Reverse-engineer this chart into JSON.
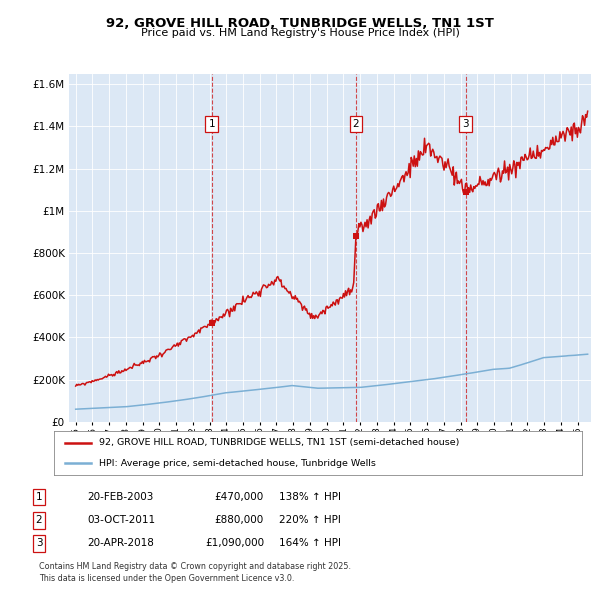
{
  "title": "92, GROVE HILL ROAD, TUNBRIDGE WELLS, TN1 1ST",
  "subtitle": "Price paid vs. HM Land Registry's House Price Index (HPI)",
  "legend_line1": "92, GROVE HILL ROAD, TUNBRIDGE WELLS, TN1 1ST (semi-detached house)",
  "legend_line2": "HPI: Average price, semi-detached house, Tunbridge Wells",
  "footnote": "Contains HM Land Registry data © Crown copyright and database right 2025.\nThis data is licensed under the Open Government Licence v3.0.",
  "transactions": [
    {
      "label": "1",
      "date": "20-FEB-2003",
      "price": 470000,
      "pct": "138%",
      "x": 2003.13
    },
    {
      "label": "2",
      "date": "03-OCT-2011",
      "price": 880000,
      "pct": "220%",
      "x": 2011.75
    },
    {
      "label": "3",
      "date": "20-APR-2018",
      "price": 1090000,
      "pct": "164%",
      "x": 2018.3
    }
  ],
  "hpi_color": "#7bafd4",
  "price_color": "#cc1111",
  "dashed_color": "#cc1111",
  "plot_bg": "#dce8f5",
  "ylim": [
    0,
    1650000
  ],
  "xlim_start": 1994.6,
  "xlim_end": 2025.8,
  "yticks": [
    0,
    200000,
    400000,
    600000,
    800000,
    1000000,
    1200000,
    1400000,
    1600000
  ],
  "xticks": [
    1995,
    1996,
    1997,
    1998,
    1999,
    2000,
    2001,
    2002,
    2003,
    2004,
    2005,
    2006,
    2007,
    2008,
    2009,
    2010,
    2011,
    2012,
    2013,
    2014,
    2015,
    2016,
    2017,
    2018,
    2019,
    2020,
    2021,
    2022,
    2023,
    2024,
    2025
  ]
}
